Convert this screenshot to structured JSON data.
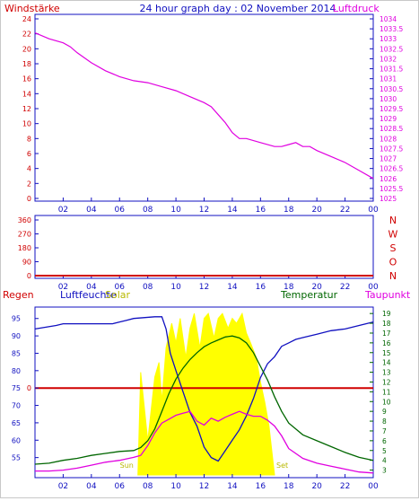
{
  "title": "24 hour graph day : 02 November 2014",
  "colors": {
    "red": "#d00000",
    "blue": "#1010c0",
    "magenta": "#e000e0",
    "green": "#006600",
    "yellow": "#ffff00",
    "olive": "#b8b800"
  },
  "chart_data": [
    {
      "type": "line",
      "name": "wind-pressure",
      "left_label": "Windstärke",
      "right_label": "Luftdruck",
      "x_ticks": [
        "02",
        "04",
        "06",
        "08",
        "10",
        "12",
        "14",
        "16",
        "18",
        "20",
        "22",
        "00"
      ],
      "ylim_left": [
        0,
        24
      ],
      "left_ticks": [
        "0",
        "2",
        "4",
        "6",
        "8",
        "10",
        "12",
        "14",
        "16",
        "18",
        "20",
        "22",
        "24"
      ],
      "ylim_right": [
        1025,
        1034
      ],
      "right_ticks": [
        "1025",
        "1025.5",
        "1026",
        "1026.5",
        "1027",
        "1027.5",
        "1028",
        "1028.5",
        "1029",
        "1029.5",
        "1030",
        "1030.5",
        "1031",
        "1031.5",
        "1032",
        "1032.5",
        "1033",
        "1033.5",
        "1034"
      ],
      "series": [
        {
          "name": "Luftdruck",
          "axis": "right",
          "color": "magenta",
          "x": [
            0,
            1,
            2,
            2.5,
            3,
            4,
            5,
            6,
            7,
            8,
            9,
            10,
            11,
            12,
            12.5,
            13,
            13.5,
            14,
            14.5,
            15,
            16,
            17,
            17.5,
            18,
            18.5,
            19,
            19.5,
            20,
            21,
            22,
            23,
            24
          ],
          "y": [
            1033.3,
            1033.0,
            1032.8,
            1032.6,
            1032.3,
            1031.8,
            1031.4,
            1031.1,
            1030.9,
            1030.8,
            1030.6,
            1030.4,
            1030.1,
            1029.8,
            1029.6,
            1029.2,
            1028.8,
            1028.3,
            1028.0,
            1028.0,
            1027.8,
            1027.6,
            1027.6,
            1027.7,
            1027.8,
            1027.6,
            1027.6,
            1027.4,
            1027.1,
            1026.8,
            1026.4,
            1026.0
          ]
        }
      ]
    },
    {
      "type": "line",
      "name": "wind-direction",
      "ylim_left": [
        0,
        360
      ],
      "left_ticks": [
        "0",
        "90",
        "180",
        "270",
        "360"
      ],
      "right_labels": [
        "N",
        "W",
        "S",
        "O",
        "N"
      ],
      "x_ticks": [
        "02",
        "04",
        "06",
        "08",
        "10",
        "12",
        "14",
        "16",
        "18",
        "20",
        "22",
        "00"
      ],
      "series": [
        {
          "name": "Windrichtung",
          "color": "red",
          "x": [
            0,
            24
          ],
          "y": [
            0,
            0
          ]
        }
      ]
    },
    {
      "type": "line",
      "name": "humidity-temperature",
      "legend": [
        "Regen",
        "Luftfeuchte",
        "Solar",
        "Temperatur",
        "Taupunkt"
      ],
      "x_ticks": [
        "02",
        "04",
        "06",
        "08",
        "10",
        "12",
        "14",
        "16",
        "18",
        "20",
        "22",
        "00"
      ],
      "ylim_left": [
        50,
        97
      ],
      "left_ticks": [
        "55",
        "60",
        "65",
        "70",
        "75",
        "80",
        "85",
        "90",
        "95"
      ],
      "rain_zero_label": "0",
      "rain_zero_value": 75,
      "ylim_right": [
        2.5,
        19.2
      ],
      "right_ticks": [
        "3",
        "4",
        "5",
        "6",
        "7",
        "8",
        "9",
        "10",
        "11",
        "12",
        "13",
        "14",
        "15",
        "16",
        "17",
        "18",
        "19"
      ],
      "sun_label": "Sun",
      "set_label": "Set",
      "sunrise_hour": 7.3,
      "sunset_hour": 17.0,
      "series": [
        {
          "name": "Luftfeuchte",
          "axis": "left",
          "color": "blue",
          "x": [
            0,
            1.5,
            2,
            5.5,
            6,
            6.5,
            7,
            8.5,
            9,
            9.3,
            9.6,
            10,
            10.5,
            11,
            11.5,
            12,
            12.5,
            13,
            13.5,
            14,
            14.5,
            15,
            15.5,
            16,
            16.5,
            17,
            17.5,
            18,
            18.5,
            19,
            20,
            21,
            22,
            23,
            24
          ],
          "y": [
            92,
            93,
            93.5,
            93.5,
            94,
            94.5,
            95,
            95.5,
            95.5,
            92,
            85,
            80,
            74,
            68,
            64,
            58,
            55,
            54,
            57,
            60,
            63,
            67,
            72,
            78,
            82,
            84,
            87,
            88,
            89,
            89.5,
            90.5,
            91.5,
            92,
            93,
            94
          ]
        },
        {
          "name": "Temperatur",
          "axis": "right",
          "color": "green",
          "x": [
            0,
            1,
            2,
            3,
            4,
            5,
            6,
            7,
            7.5,
            8,
            8.5,
            9,
            9.5,
            10,
            10.5,
            11,
            11.5,
            12,
            12.5,
            13,
            13.5,
            14,
            14.5,
            15,
            15.5,
            16,
            16.5,
            17,
            17.5,
            18,
            19,
            20,
            21,
            22,
            23,
            24
          ],
          "y": [
            3.6,
            3.7,
            4.0,
            4.2,
            4.5,
            4.7,
            4.9,
            5.0,
            5.3,
            6.0,
            7.2,
            9.0,
            10.8,
            12.3,
            13.4,
            14.3,
            15.0,
            15.6,
            16.0,
            16.3,
            16.6,
            16.7,
            16.5,
            16.0,
            15.0,
            13.6,
            12.2,
            10.5,
            9.0,
            7.8,
            6.6,
            6.0,
            5.4,
            4.8,
            4.3,
            4.0
          ]
        },
        {
          "name": "Taupunkt",
          "axis": "right",
          "color": "magenta",
          "x": [
            0,
            1,
            2,
            3,
            4,
            5,
            6,
            7,
            7.5,
            8,
            8.5,
            9,
            9.5,
            10,
            10.5,
            11,
            11.5,
            12,
            12.5,
            13,
            13.5,
            14,
            14.5,
            15,
            15.5,
            16,
            16.5,
            17,
            17.5,
            18,
            19,
            20,
            21,
            22,
            23,
            24
          ],
          "y": [
            2.9,
            2.9,
            3.0,
            3.2,
            3.5,
            3.8,
            4.0,
            4.3,
            4.5,
            5.5,
            6.8,
            7.8,
            8.2,
            8.6,
            8.8,
            9.0,
            8.0,
            7.6,
            8.3,
            8.0,
            8.4,
            8.7,
            9.0,
            8.7,
            8.5,
            8.5,
            8.1,
            7.5,
            6.5,
            5.2,
            4.2,
            3.7,
            3.4,
            3.1,
            2.8,
            2.7
          ]
        },
        {
          "name": "Solar",
          "axis": "right",
          "color": "yellow",
          "x": [
            7.3,
            7.5,
            8.0,
            8.5,
            8.8,
            9.0,
            9.3,
            9.7,
            10.0,
            10.3,
            10.7,
            11.0,
            11.3,
            11.7,
            12.0,
            12.3,
            12.7,
            13.0,
            13.3,
            13.7,
            14.0,
            14.3,
            14.7,
            15.0,
            15.3,
            15.7,
            16.0,
            16.3,
            16.6,
            17.0
          ],
          "y": [
            2.5,
            13.0,
            6.0,
            12.5,
            14.0,
            10.0,
            15.5,
            18.0,
            16.0,
            18.5,
            14.5,
            17.5,
            19.0,
            15.5,
            18.5,
            19.0,
            16.5,
            18.5,
            19.0,
            17.5,
            18.5,
            18.0,
            19.0,
            17.0,
            16.0,
            14.5,
            12.0,
            10.0,
            7.5,
            2.5
          ]
        }
      ]
    }
  ]
}
